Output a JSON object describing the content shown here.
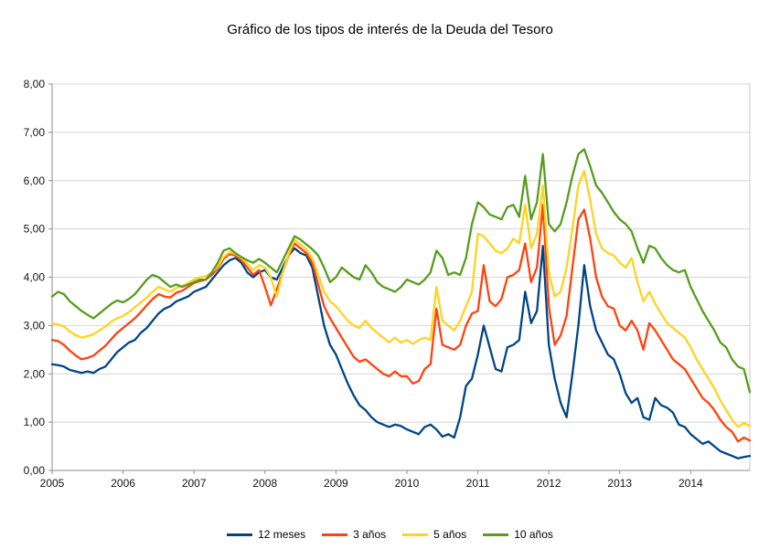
{
  "title": "Gráfico de los tipos de interés de la Deuda del Tesoro",
  "chart_data": {
    "type": "line",
    "title": "Gráfico de los tipos de interés de la Deuda del Tesoro",
    "x_start_year": 2005,
    "points_per_year": 12,
    "ylim": [
      0,
      8
    ],
    "grid": "horizontal",
    "legend_position": "bottom",
    "y_tick_labels": [
      "0,00",
      "1,00",
      "2,00",
      "3,00",
      "4,00",
      "5,00",
      "6,00",
      "7,00",
      "8,00"
    ],
    "x_tick_labels": [
      "2005",
      "2006",
      "2007",
      "2008",
      "2009",
      "2010",
      "2011",
      "2012",
      "2013",
      "2014"
    ],
    "series": [
      {
        "name": "12 meses",
        "color": "#004586",
        "values": [
          2.2,
          2.18,
          2.15,
          2.08,
          2.05,
          2.02,
          2.05,
          2.02,
          2.1,
          2.15,
          2.3,
          2.45,
          2.55,
          2.65,
          2.7,
          2.85,
          2.95,
          3.1,
          3.25,
          3.35,
          3.4,
          3.5,
          3.55,
          3.6,
          3.7,
          3.75,
          3.8,
          3.95,
          4.1,
          4.25,
          4.35,
          4.4,
          4.3,
          4.1,
          4.0,
          4.1,
          4.15,
          4.0,
          3.95,
          4.2,
          4.45,
          4.6,
          4.5,
          4.45,
          4.2,
          3.6,
          3.0,
          2.6,
          2.4,
          2.1,
          1.8,
          1.55,
          1.35,
          1.25,
          1.1,
          1.0,
          0.95,
          0.9,
          0.95,
          0.92,
          0.85,
          0.8,
          0.75,
          0.9,
          0.95,
          0.85,
          0.7,
          0.75,
          0.68,
          1.1,
          1.75,
          1.9,
          2.4,
          3.0,
          2.55,
          2.1,
          2.05,
          2.55,
          2.6,
          2.7,
          3.7,
          3.05,
          3.3,
          4.65,
          2.6,
          1.9,
          1.4,
          1.1,
          2.0,
          3.0,
          4.25,
          3.4,
          2.9,
          2.65,
          2.4,
          2.3,
          2.0,
          1.6,
          1.4,
          1.5,
          1.1,
          1.05,
          1.5,
          1.35,
          1.3,
          1.2,
          0.95,
          0.9,
          0.75,
          0.65,
          0.55,
          0.6,
          0.5,
          0.4,
          0.35,
          0.3,
          0.25,
          0.28,
          0.3
        ]
      },
      {
        "name": "3 años",
        "color": "#ff420e",
        "values": [
          2.7,
          2.68,
          2.6,
          2.48,
          2.38,
          2.3,
          2.33,
          2.38,
          2.48,
          2.58,
          2.72,
          2.85,
          2.95,
          3.05,
          3.15,
          3.28,
          3.42,
          3.55,
          3.65,
          3.6,
          3.58,
          3.68,
          3.72,
          3.8,
          3.88,
          3.92,
          3.95,
          4.05,
          4.18,
          4.38,
          4.48,
          4.45,
          4.35,
          4.2,
          4.05,
          4.15,
          3.8,
          3.42,
          3.75,
          4.1,
          4.45,
          4.7,
          4.6,
          4.5,
          4.3,
          3.85,
          3.4,
          3.15,
          2.95,
          2.75,
          2.55,
          2.35,
          2.25,
          2.3,
          2.2,
          2.1,
          2.0,
          1.95,
          2.05,
          1.95,
          1.95,
          1.8,
          1.85,
          2.1,
          2.2,
          3.35,
          2.6,
          2.55,
          2.5,
          2.6,
          3.0,
          3.25,
          3.3,
          4.25,
          3.5,
          3.4,
          3.55,
          4.0,
          4.05,
          4.15,
          4.7,
          3.9,
          4.2,
          5.5,
          3.4,
          2.6,
          2.8,
          3.2,
          4.2,
          5.2,
          5.4,
          4.8,
          4.0,
          3.6,
          3.4,
          3.35,
          3.0,
          2.9,
          3.1,
          2.9,
          2.5,
          3.05,
          2.9,
          2.7,
          2.5,
          2.3,
          2.2,
          2.1,
          1.9,
          1.7,
          1.5,
          1.4,
          1.25,
          1.05,
          0.9,
          0.8,
          0.6,
          0.68,
          0.62
        ]
      },
      {
        "name": "5 años",
        "color": "#ffd320",
        "values": [
          3.05,
          3.02,
          2.98,
          2.88,
          2.8,
          2.75,
          2.78,
          2.82,
          2.9,
          2.98,
          3.08,
          3.15,
          3.2,
          3.28,
          3.38,
          3.48,
          3.58,
          3.7,
          3.8,
          3.75,
          3.7,
          3.78,
          3.82,
          3.88,
          3.95,
          4.0,
          4.02,
          4.1,
          4.22,
          4.42,
          4.52,
          4.48,
          4.4,
          4.28,
          4.15,
          4.25,
          4.2,
          4.0,
          3.6,
          4.1,
          4.48,
          4.78,
          4.68,
          4.58,
          4.4,
          4.05,
          3.7,
          3.5,
          3.4,
          3.25,
          3.1,
          3.0,
          2.95,
          3.1,
          2.95,
          2.85,
          2.75,
          2.65,
          2.75,
          2.65,
          2.7,
          2.62,
          2.7,
          2.75,
          2.7,
          3.8,
          3.1,
          3.0,
          2.9,
          3.1,
          3.4,
          3.7,
          4.9,
          4.85,
          4.7,
          4.55,
          4.5,
          4.6,
          4.8,
          4.7,
          5.5,
          4.6,
          4.9,
          5.9,
          4.1,
          3.6,
          3.7,
          4.2,
          5.0,
          5.9,
          6.2,
          5.6,
          4.9,
          4.6,
          4.5,
          4.45,
          4.3,
          4.2,
          4.4,
          3.9,
          3.5,
          3.7,
          3.45,
          3.25,
          3.05,
          2.95,
          2.85,
          2.75,
          2.55,
          2.3,
          2.1,
          1.9,
          1.7,
          1.45,
          1.25,
          1.05,
          0.9,
          0.98,
          0.92
        ]
      },
      {
        "name": "10 años",
        "color": "#579d1c",
        "values": [
          3.6,
          3.7,
          3.65,
          3.5,
          3.4,
          3.3,
          3.22,
          3.15,
          3.25,
          3.35,
          3.45,
          3.52,
          3.48,
          3.55,
          3.65,
          3.8,
          3.95,
          4.05,
          4.0,
          3.9,
          3.8,
          3.85,
          3.8,
          3.85,
          3.9,
          3.95,
          3.95,
          4.1,
          4.3,
          4.55,
          4.6,
          4.5,
          4.42,
          4.35,
          4.3,
          4.38,
          4.3,
          4.2,
          4.1,
          4.35,
          4.6,
          4.85,
          4.78,
          4.68,
          4.58,
          4.45,
          4.2,
          3.9,
          4.0,
          4.2,
          4.1,
          4.0,
          3.95,
          4.25,
          4.1,
          3.9,
          3.8,
          3.75,
          3.7,
          3.8,
          3.95,
          3.9,
          3.85,
          3.95,
          4.1,
          4.55,
          4.4,
          4.05,
          4.1,
          4.05,
          4.4,
          5.1,
          5.55,
          5.45,
          5.3,
          5.25,
          5.2,
          5.45,
          5.5,
          5.25,
          6.1,
          5.2,
          5.55,
          6.55,
          5.1,
          4.95,
          5.1,
          5.55,
          6.1,
          6.55,
          6.65,
          6.3,
          5.9,
          5.75,
          5.55,
          5.35,
          5.2,
          5.1,
          4.95,
          4.6,
          4.3,
          4.65,
          4.6,
          4.4,
          4.25,
          4.15,
          4.1,
          4.15,
          3.8,
          3.55,
          3.3,
          3.1,
          2.9,
          2.65,
          2.55,
          2.3,
          2.15,
          2.1,
          1.62
        ]
      }
    ]
  }
}
